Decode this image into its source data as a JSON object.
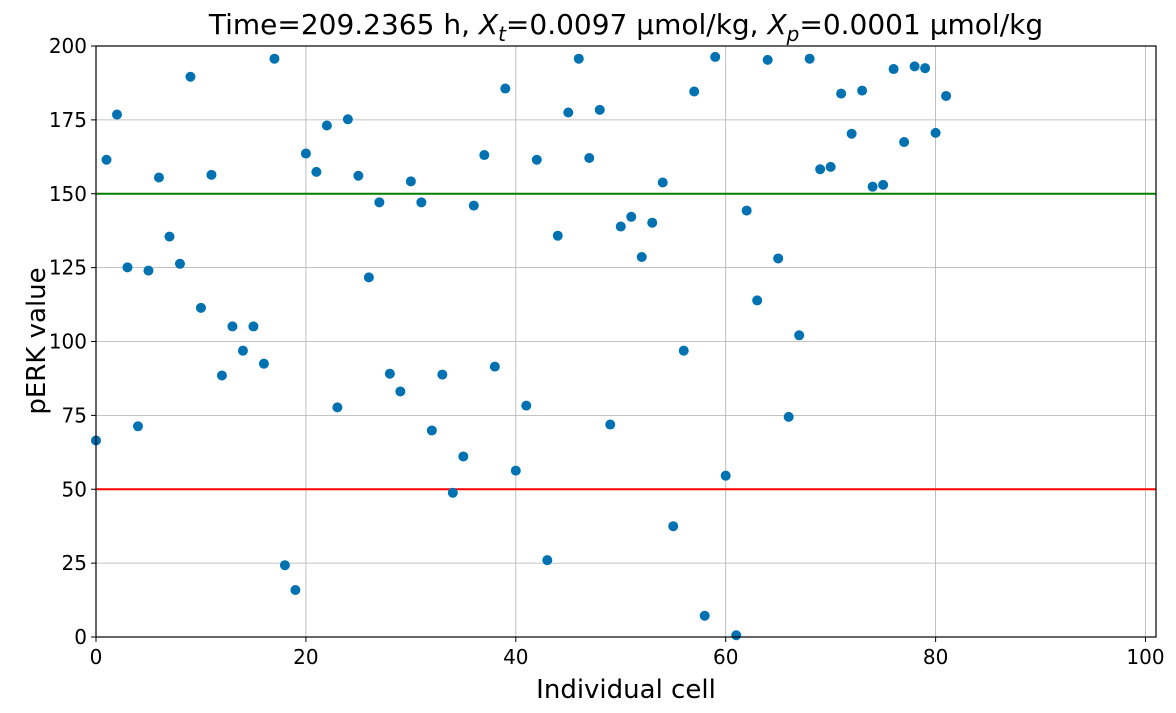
{
  "chart_data": {
    "type": "scatter",
    "title": {
      "prefix": "Time=209.2365 h, ",
      "xt_base": "X",
      "xt_sub": "t",
      "xt_value": "=0.0097 µmol/kg, ",
      "xp_base": "X",
      "xp_sub": "p",
      "xp_value": "=0.0001 µmol/kg"
    },
    "xlabel": "Individual cell",
    "ylabel": "pERK value",
    "xlim": [
      0,
      101
    ],
    "ylim": [
      0,
      200
    ],
    "xticks": [
      0,
      20,
      40,
      60,
      80,
      100
    ],
    "yticks": [
      0,
      25,
      50,
      75,
      100,
      125,
      150,
      175,
      200
    ],
    "grid": true,
    "point_color": "#0072b2",
    "reference_lines": [
      {
        "y": 150,
        "color": "#008000"
      },
      {
        "y": 50,
        "color": "#ff0000"
      }
    ],
    "series": [
      {
        "values": [
          66.5,
          161.5,
          176.8,
          125.1,
          71.3,
          124.0,
          155.5,
          135.5,
          126.3,
          189.6,
          111.4,
          156.4,
          88.5,
          105.1,
          96.9,
          105.1,
          92.5,
          195.7,
          24.3,
          15.9,
          163.6,
          157.4,
          173.1,
          77.7,
          175.2,
          156.1,
          121.7,
          147.1,
          89.1,
          83.1,
          154.2,
          147.1,
          69.9,
          88.8,
          48.8,
          61.1,
          146.0,
          163.1,
          91.5,
          185.6,
          56.3,
          78.3,
          161.5,
          26.0,
          135.8,
          177.5,
          195.7,
          162.1,
          178.4,
          71.9,
          138.9,
          142.2,
          128.6,
          140.2,
          153.8,
          37.5,
          96.9,
          184.6,
          7.2,
          196.3,
          54.6,
          0.6,
          144.3,
          113.9,
          195.3,
          128.1,
          74.5,
          102.1,
          195.7,
          158.3,
          159.1,
          183.9,
          170.3,
          184.9,
          152.4,
          153.0,
          192.2,
          167.5,
          193.1,
          192.5,
          170.6,
          183.1
        ]
      }
    ]
  }
}
